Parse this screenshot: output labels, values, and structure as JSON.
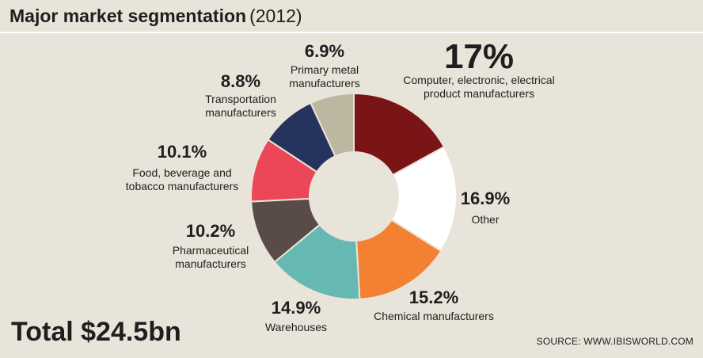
{
  "header": {
    "title": "Major market segmentation",
    "year": "(2012)"
  },
  "total": "Total $24.5bn",
  "source": "SOURCE: WWW.IBISWORLD.COM",
  "chart_data": {
    "type": "pie",
    "donut": true,
    "title": "Major market segmentation (2012)",
    "slices": [
      {
        "value": 17.0,
        "pct_label": "17%",
        "label_lines": [
          "Computer, electronic, electrical",
          "product manufacturers"
        ],
        "color": "#7b1416"
      },
      {
        "value": 16.9,
        "pct_label": "16.9%",
        "label_lines": [
          "Other"
        ],
        "color": "#ffffff"
      },
      {
        "value": 15.2,
        "pct_label": "15.2%",
        "label_lines": [
          "Chemical manufacturers"
        ],
        "color": "#f28232"
      },
      {
        "value": 14.9,
        "pct_label": "14.9%",
        "label_lines": [
          "Warehouses"
        ],
        "color": "#66b9b3"
      },
      {
        "value": 10.2,
        "pct_label": "10.2%",
        "label_lines": [
          "Pharmaceutical",
          "manufacturers"
        ],
        "color": "#584b48"
      },
      {
        "value": 10.1,
        "pct_label": "10.1%",
        "label_lines": [
          "Food, beverage and",
          "tobacco manufacturers"
        ],
        "color": "#ec4759"
      },
      {
        "value": 8.8,
        "pct_label": "8.8%",
        "label_lines": [
          "Transportation",
          "manufacturers"
        ],
        "color": "#26345d"
      },
      {
        "value": 6.9,
        "pct_label": "6.9%",
        "label_lines": [
          "Primary metal",
          "manufacturers"
        ],
        "color": "#bdb6a1"
      }
    ]
  }
}
